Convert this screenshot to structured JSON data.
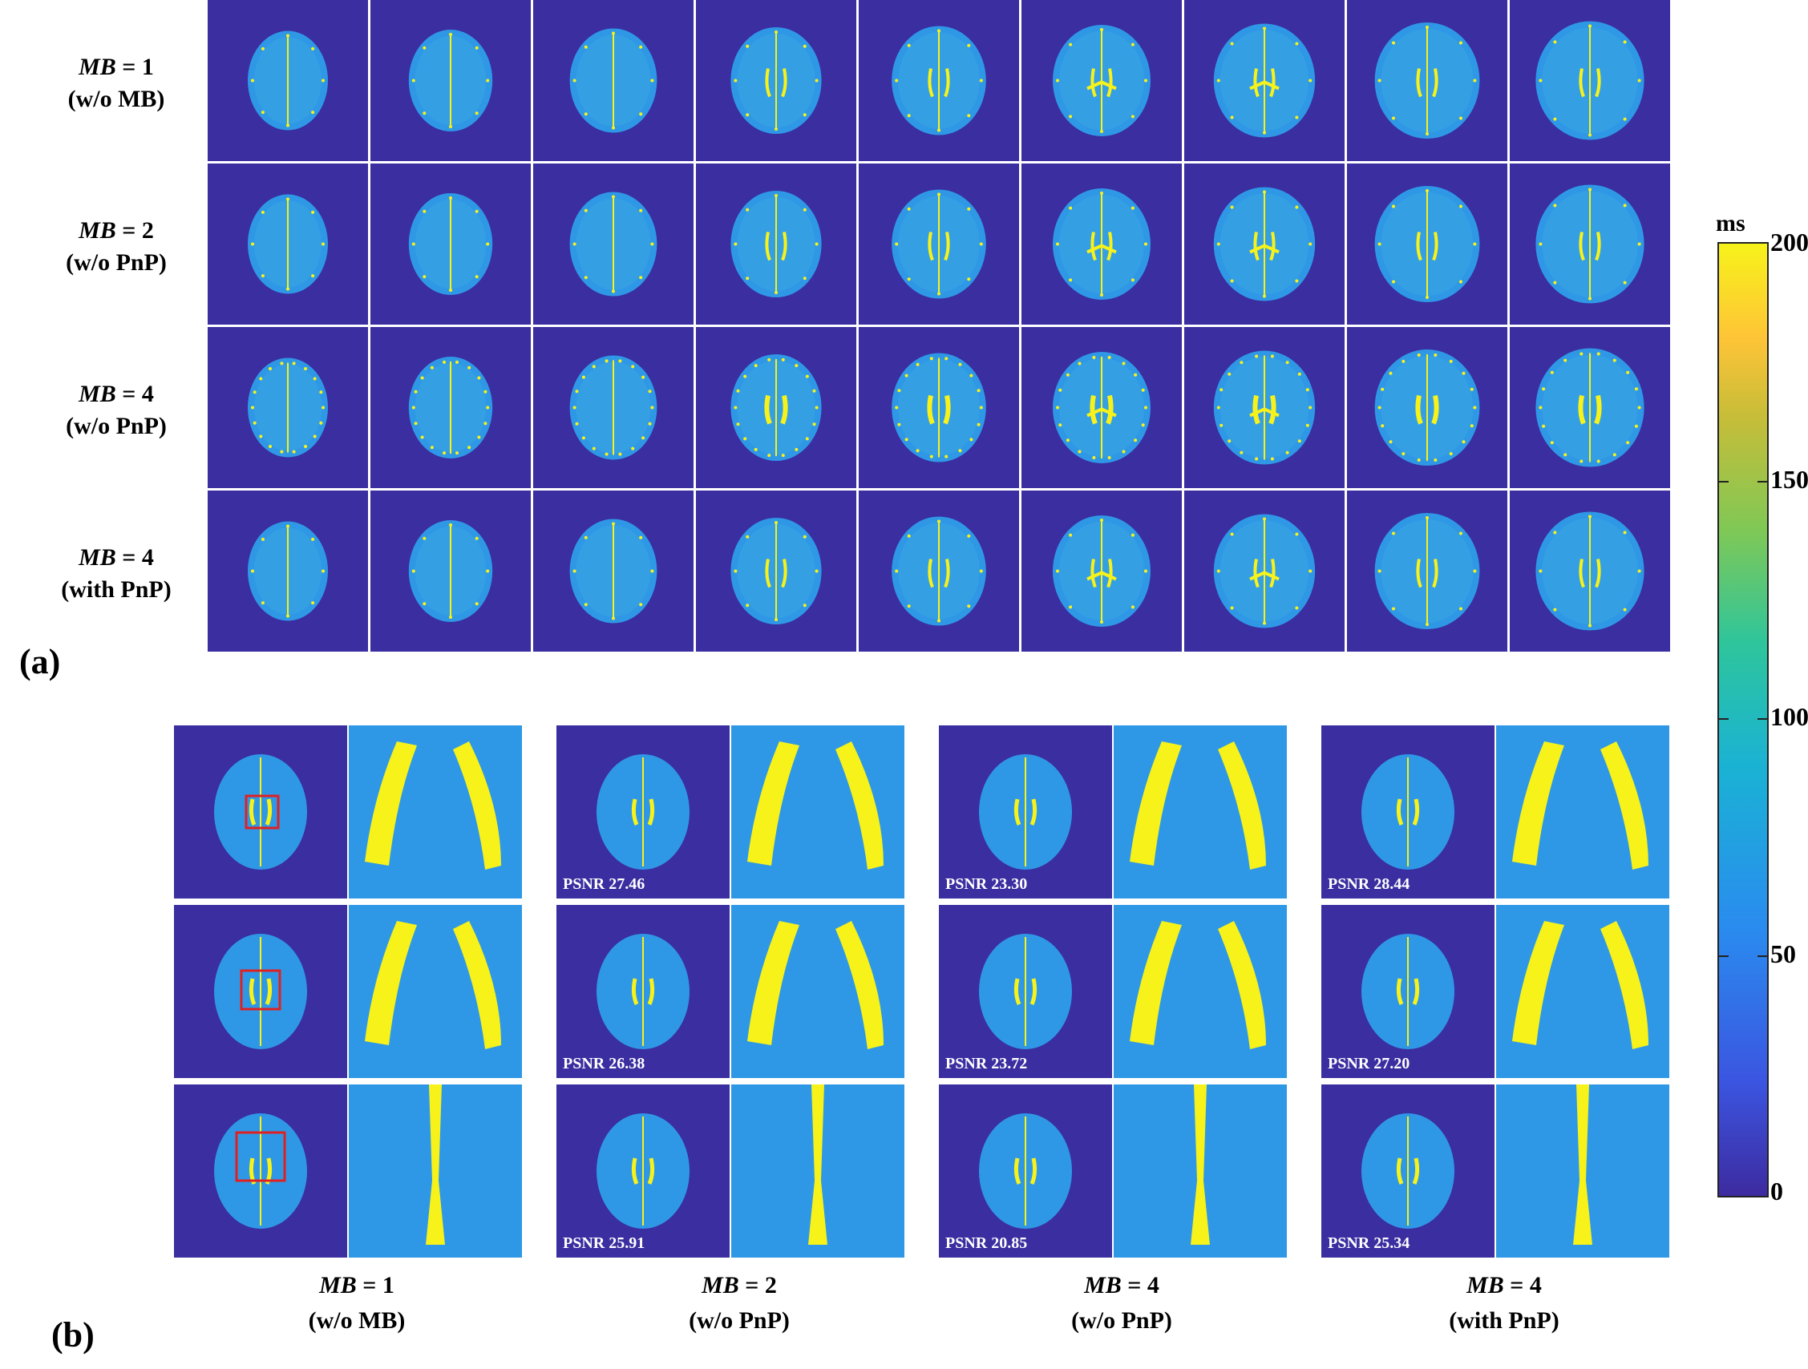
{
  "panel_a": {
    "letter": "(a)",
    "rows": [
      {
        "mb": "MB",
        "eq": " = 1",
        "sub": "(w/o MB)"
      },
      {
        "mb": "MB",
        "eq": " = 2",
        "sub": "(w/o PnP)"
      },
      {
        "mb": "MB",
        "eq": " = 4",
        "sub": "(w/o PnP)"
      },
      {
        "mb": "MB",
        "eq": " = 4",
        "sub": "(with PnP)"
      }
    ]
  },
  "panel_b": {
    "letter": "(b)",
    "columns": [
      {
        "mb": "MB",
        "eq": " = 1",
        "sub": "(w/o MB)",
        "psnr": [
          "",
          "",
          ""
        ]
      },
      {
        "mb": "MB",
        "eq": " = 2",
        "sub": "(w/o PnP)",
        "psnr": [
          "PSNR 27.46",
          "PSNR 26.38",
          "PSNR 25.91"
        ]
      },
      {
        "mb": "MB",
        "eq": " = 4",
        "sub": "(w/o PnP)",
        "psnr": [
          "PSNR 23.30",
          "PSNR 23.72",
          "PSNR 20.85"
        ]
      },
      {
        "mb": "MB",
        "eq": " = 4",
        "sub": "(with PnP)",
        "psnr": [
          "PSNR 28.44",
          "PSNR 27.20",
          "PSNR 25.34"
        ]
      }
    ]
  },
  "colorbar": {
    "unit": "ms",
    "ticks": [
      "200",
      "150",
      "100",
      "50",
      "0"
    ],
    "colors": {
      "low": "#3d2ba0",
      "mid": "#1ab2d4",
      "high": "#f7f21a"
    }
  },
  "colors": {
    "background_map": "#3a2ea0",
    "tissue": "#2f98e6",
    "highlight": "#f7f21a",
    "roi_box": "#e02020"
  }
}
